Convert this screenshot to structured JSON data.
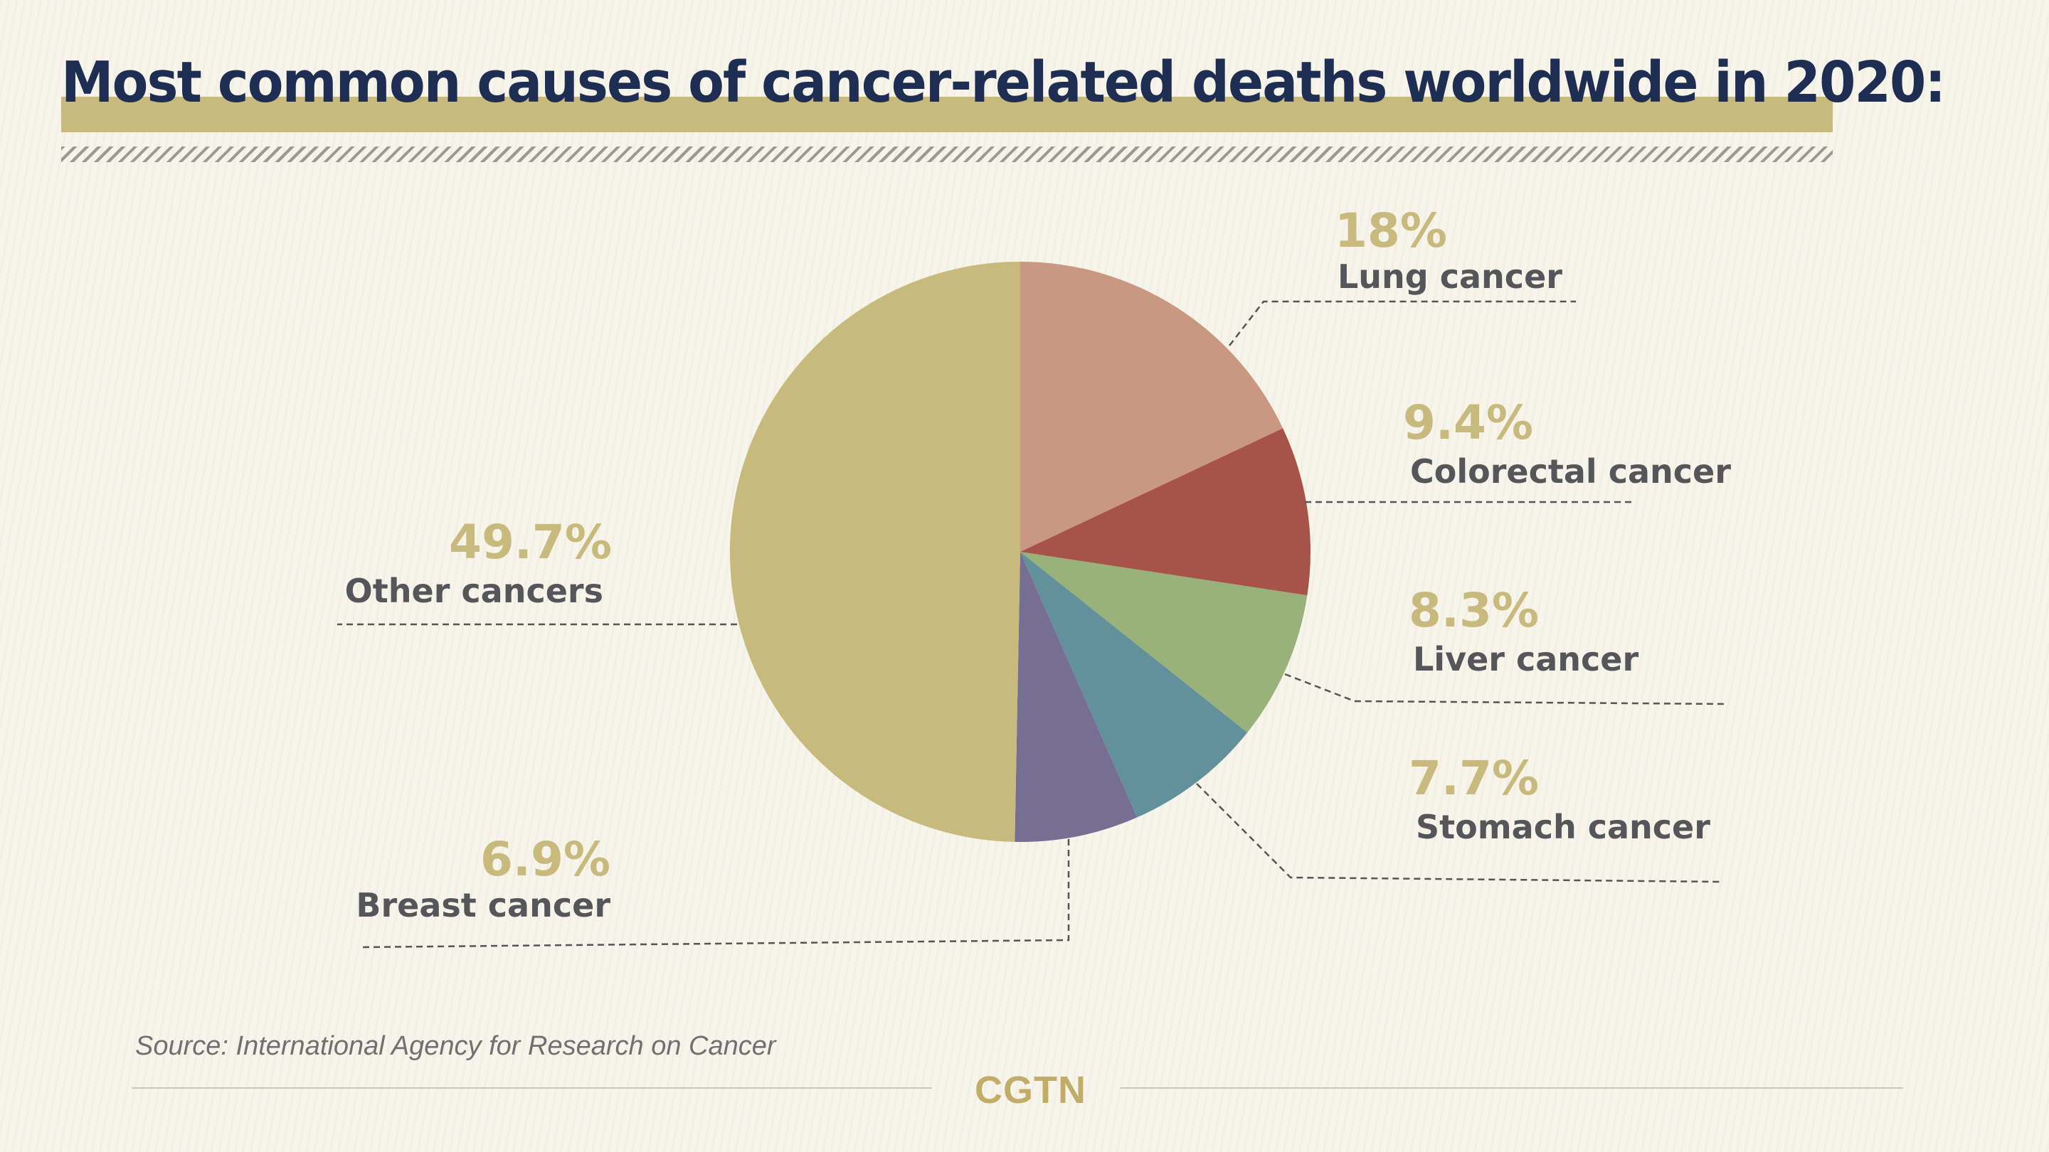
{
  "header": {
    "title": "Most common causes of cancer-related deaths worldwide in 2020:"
  },
  "chart_data": {
    "type": "pie",
    "unit": "%",
    "slices": [
      {
        "label": "Lung cancer",
        "value": 18,
        "display": "18%",
        "color": "#c99880"
      },
      {
        "label": "Colorectal cancer",
        "value": 9.4,
        "display": "9.4%",
        "color": "#a8534a"
      },
      {
        "label": "Liver cancer",
        "value": 8.3,
        "display": "8.3%",
        "color": "#98b27a"
      },
      {
        "label": "Stomach cancer",
        "value": 7.7,
        "display": "7.7%",
        "color": "#62919c"
      },
      {
        "label": "Breast cancer",
        "value": 6.9,
        "display": "6.9%",
        "color": "#776e93"
      },
      {
        "label": "Other cancers",
        "value": 49.7,
        "display": "49.7%",
        "color": "#c8b97c"
      }
    ]
  },
  "footer": {
    "source": "Source: International Agency for Research on Cancer",
    "logo": "CGTN"
  },
  "colors": {
    "title": "#1e2d52",
    "accent": "#c8b97c",
    "label": "#55565a",
    "background": "#f7f4ea"
  }
}
